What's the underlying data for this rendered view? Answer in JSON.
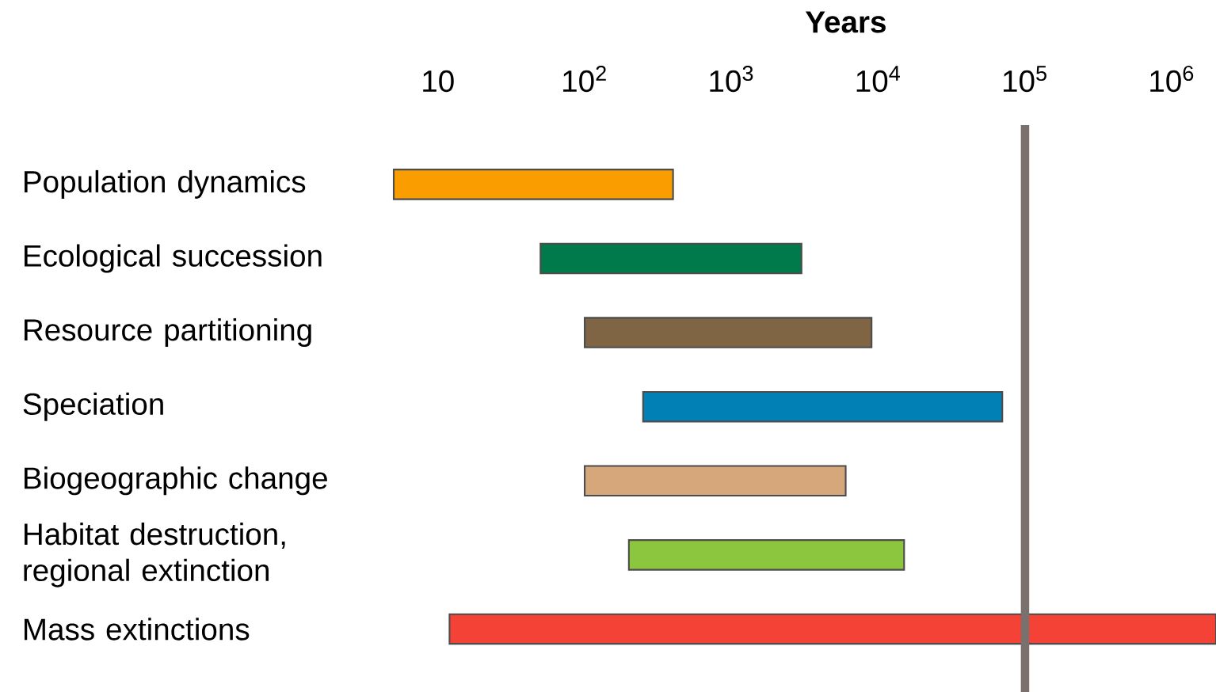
{
  "chart_data": {
    "type": "bar",
    "orientation": "horizontal",
    "log": "x",
    "xlabel": "Years",
    "categories": [
      "Population dynamics",
      "Ecological succession",
      "Resource partitioning",
      "Speciation",
      "Biogeographic change",
      "Habitat destruction, regional extinction",
      "Mass extinctions"
    ],
    "base": [
      5,
      50,
      100,
      250,
      100,
      200,
      12
    ],
    "values": [
      395,
      2950,
      8900,
      69750,
      5900,
      14800,
      1999988
    ],
    "colors": [
      "#f99d00",
      "#007a4a",
      "#7f6544",
      "#0080b5",
      "#d6a77a",
      "#8cc63e",
      "#f44336"
    ],
    "xlim": [
      5,
      2000000
    ],
    "xticks": [
      10,
      {
        "value": 100,
        "label": "10$^{2}$"
      },
      {
        "value": 1000,
        "label": "10$^{3}$"
      },
      {
        "value": 10000,
        "label": "10$^{4}$"
      },
      {
        "value": 100000,
        "label": "10$^{5}$"
      },
      {
        "value": 1000000,
        "label": "10$^{6}$"
      }
    ],
    "ref_lines": [
      {
        "axis": "x",
        "value": 100000,
        "color": "#7a716e"
      }
    ]
  }
}
